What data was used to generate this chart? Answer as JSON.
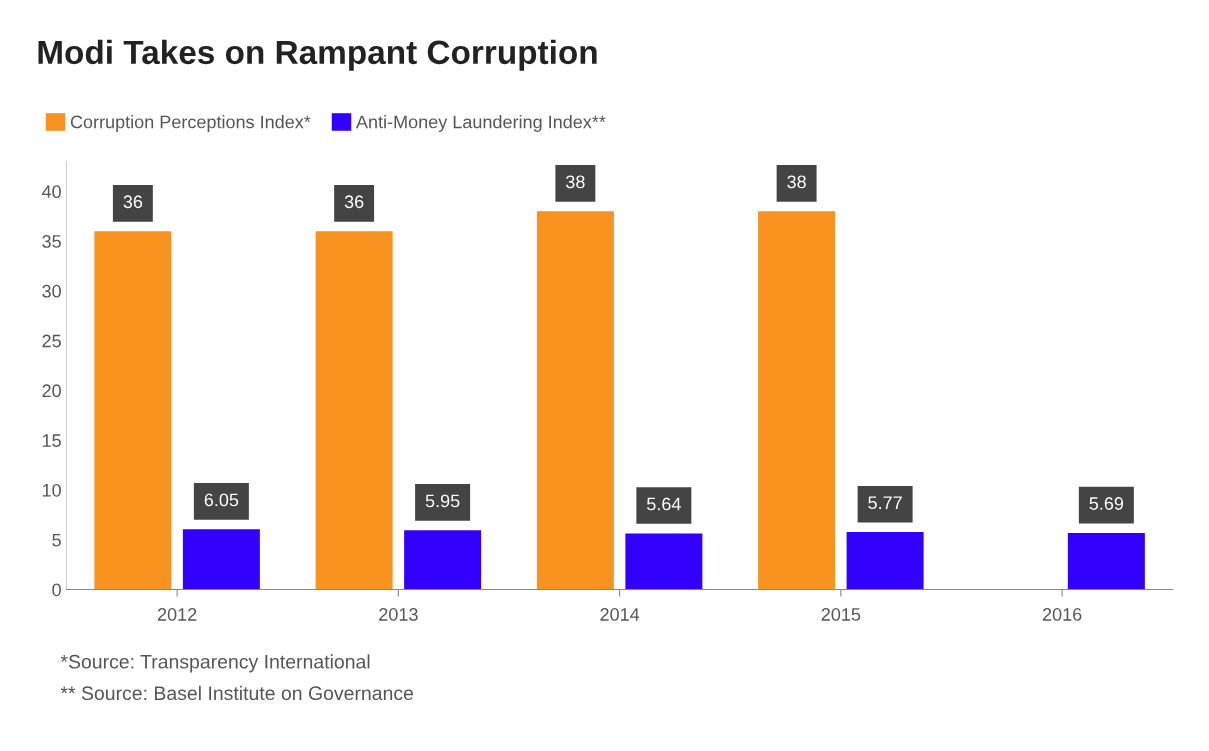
{
  "chart_data": {
    "type": "bar",
    "title": "Modi Takes on Rampant Corruption",
    "categories": [
      "2012",
      "2013",
      "2014",
      "2015",
      "2016"
    ],
    "series": [
      {
        "name": "Corruption Perceptions Index*",
        "color": "#f7931e",
        "values": [
          36,
          36,
          38,
          38,
          null
        ]
      },
      {
        "name": "Anti-Money Laundering Index**",
        "color": "#3300ff",
        "values": [
          6.05,
          5.95,
          5.64,
          5.77,
          5.69
        ]
      }
    ],
    "ylim": [
      0,
      43
    ],
    "yticks": [
      0,
      5,
      10,
      15,
      20,
      25,
      30,
      35,
      40
    ],
    "grid": false,
    "legend": "top left",
    "data_labels": true,
    "annotations": [
      "*Source: Transparency International",
      "** Source: Basel Institute on Governance"
    ]
  }
}
